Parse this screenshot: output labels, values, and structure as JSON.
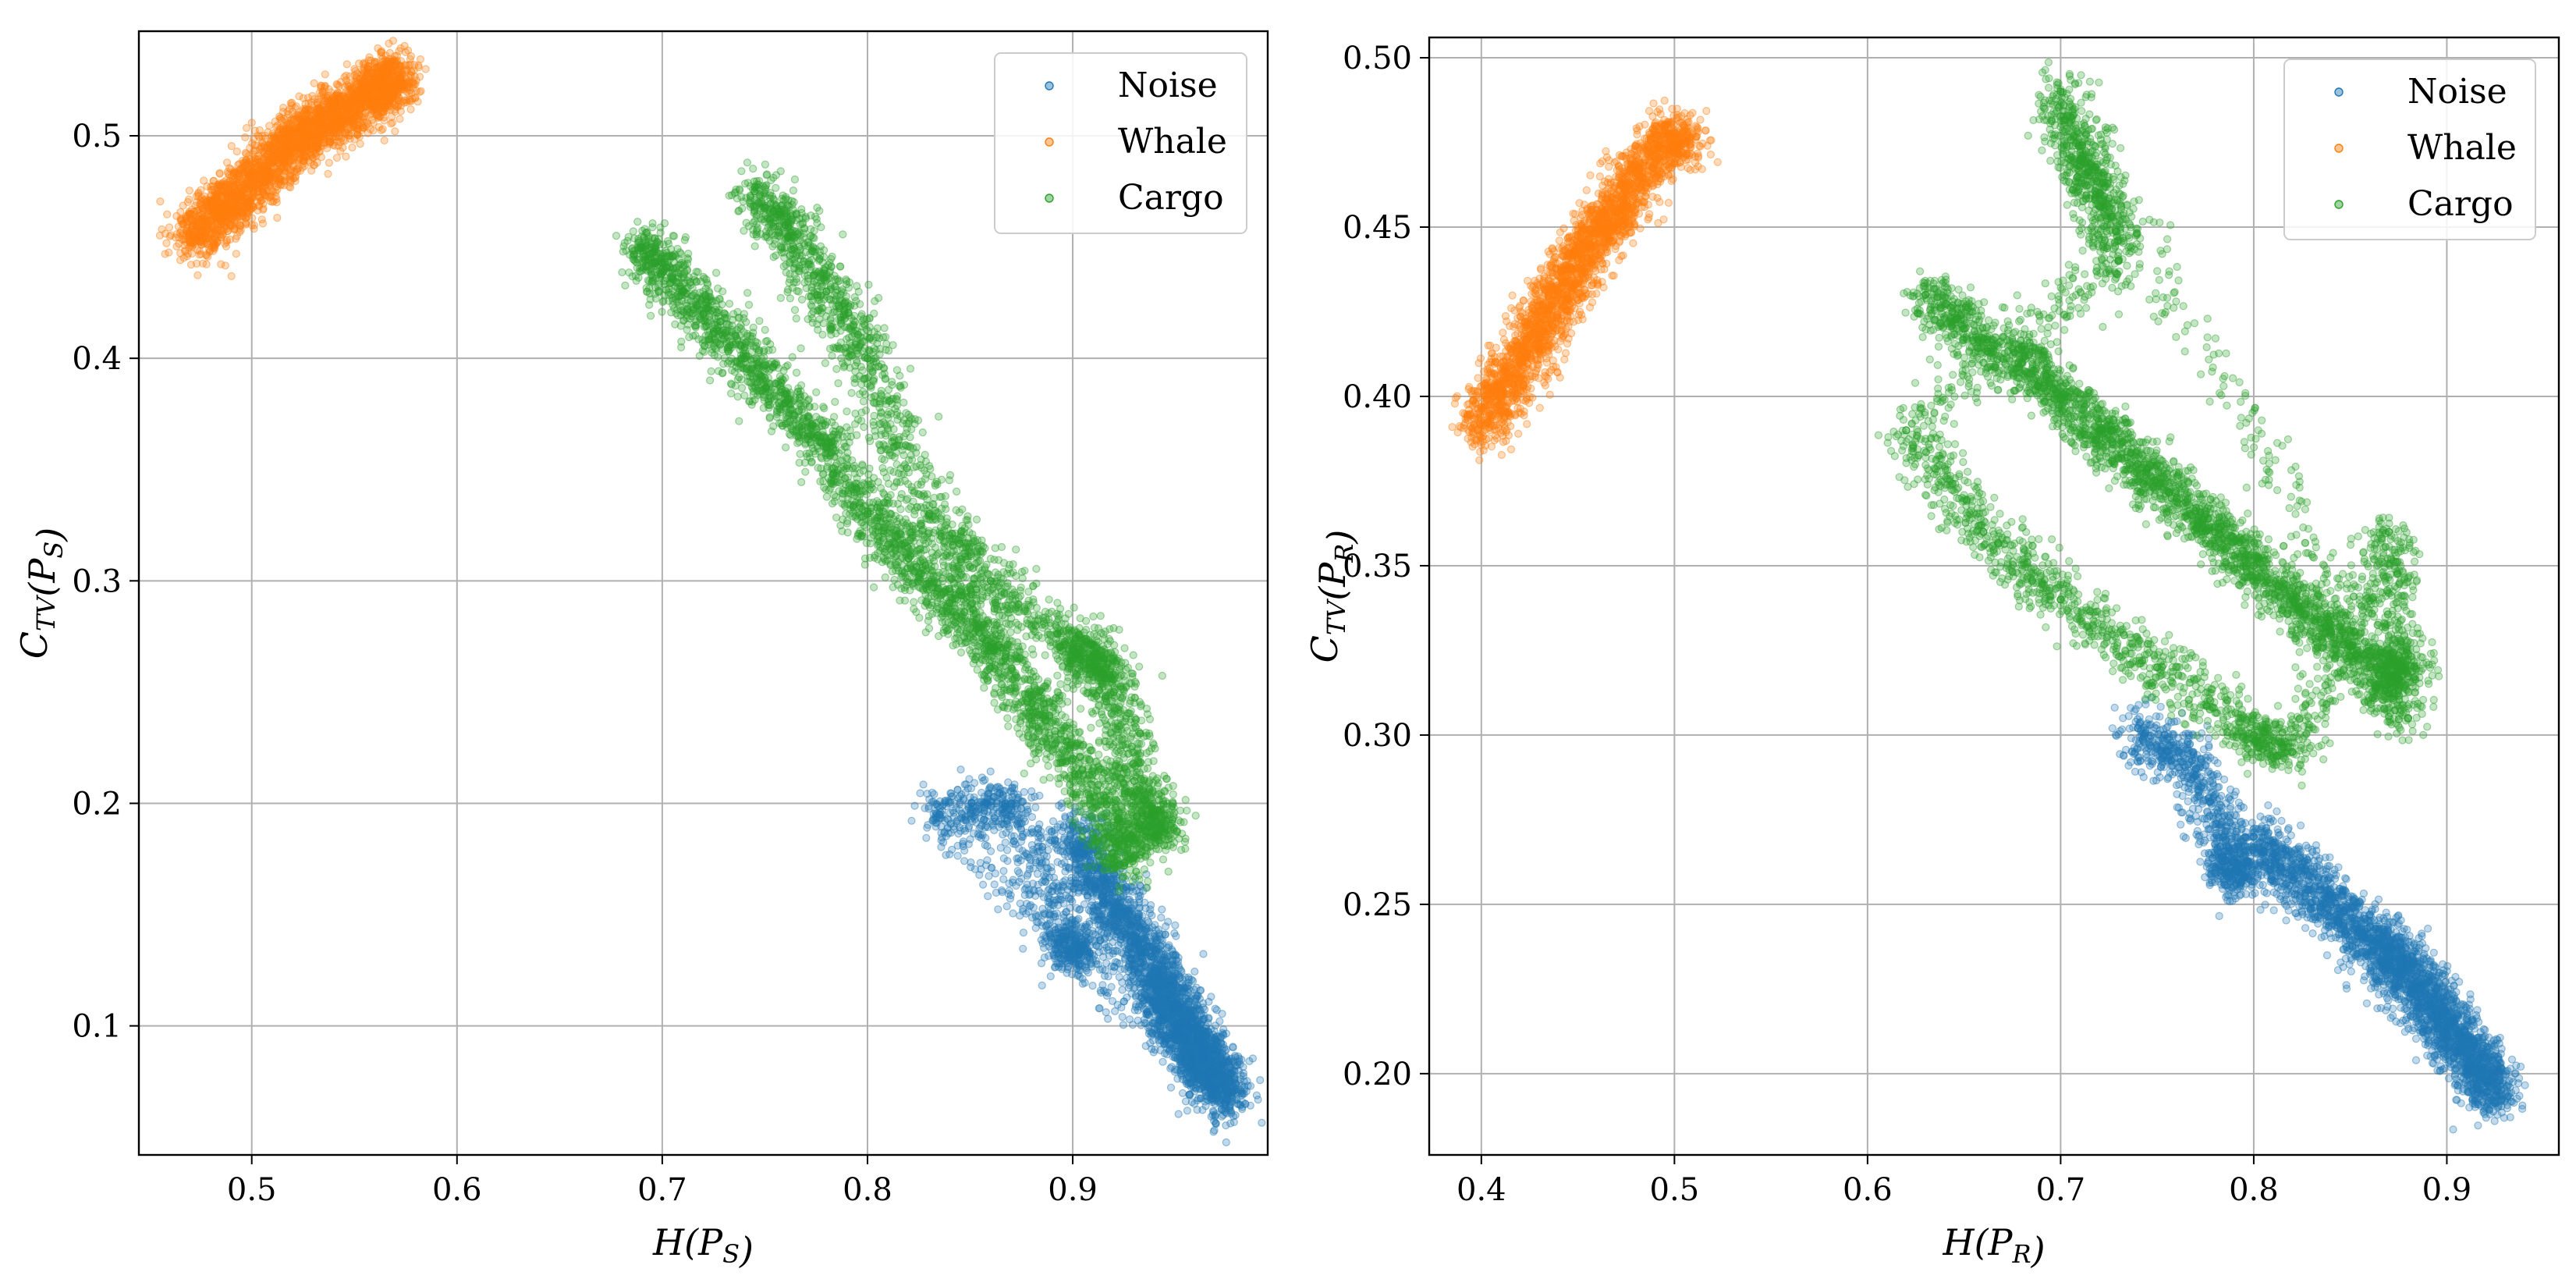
{
  "colors": {
    "noise": "#1f77b4",
    "whale": "#ff7f0e",
    "cargo": "#2ca02c"
  },
  "chart_data": [
    {
      "type": "scatter",
      "id": "left",
      "title": "",
      "xlabel": "H(P_S)",
      "ylabel": "C_TV(P_S)",
      "xlim": [
        0.445,
        0.995
      ],
      "ylim": [
        0.042,
        0.547
      ],
      "xticks": [
        0.5,
        0.6,
        0.7,
        0.8,
        0.9
      ],
      "xtick_labels": [
        "0.5",
        "0.6",
        "0.7",
        "0.8",
        "0.9"
      ],
      "yticks": [
        0.1,
        0.2,
        0.3,
        0.4,
        0.5
      ],
      "ytick_labels": [
        "0.1",
        "0.2",
        "0.3",
        "0.4",
        "0.5"
      ],
      "grid": true,
      "legend": "top-right",
      "series": [
        {
          "name": "Noise",
          "color_key": "noise",
          "points": [
            [
              0.9,
              0.19
            ],
            [
              0.91,
              0.17
            ],
            [
              0.92,
              0.155
            ],
            [
              0.93,
              0.14
            ],
            [
              0.94,
              0.125
            ],
            [
              0.945,
              0.115
            ],
            [
              0.95,
              0.105
            ],
            [
              0.955,
              0.098
            ],
            [
              0.96,
              0.09
            ],
            [
              0.965,
              0.082
            ],
            [
              0.97,
              0.075
            ],
            [
              0.975,
              0.067
            ],
            [
              0.835,
              0.195
            ],
            [
              0.87,
              0.2
            ],
            [
              0.9,
              0.135
            ]
          ]
        },
        {
          "name": "Whale",
          "color_key": "whale",
          "points": [
            [
              0.47,
              0.452
            ],
            [
              0.48,
              0.462
            ],
            [
              0.49,
              0.47
            ],
            [
              0.5,
              0.478
            ],
            [
              0.51,
              0.488
            ],
            [
              0.52,
              0.497
            ],
            [
              0.53,
              0.503
            ],
            [
              0.54,
              0.509
            ],
            [
              0.55,
              0.513
            ],
            [
              0.56,
              0.519
            ],
            [
              0.567,
              0.525
            ]
          ]
        },
        {
          "name": "Cargo",
          "color_key": "cargo",
          "points": [
            [
              0.69,
              0.45
            ],
            [
              0.7,
              0.44
            ],
            [
              0.72,
              0.42
            ],
            [
              0.74,
              0.4
            ],
            [
              0.76,
              0.38
            ],
            [
              0.78,
              0.36
            ],
            [
              0.8,
              0.33
            ],
            [
              0.82,
              0.31
            ],
            [
              0.84,
              0.29
            ],
            [
              0.86,
              0.27
            ],
            [
              0.88,
              0.245
            ],
            [
              0.9,
              0.22
            ],
            [
              0.92,
              0.19
            ],
            [
              0.925,
              0.172
            ],
            [
              0.745,
              0.475
            ],
            [
              0.76,
              0.46
            ],
            [
              0.78,
              0.43
            ],
            [
              0.8,
              0.4
            ],
            [
              0.83,
              0.33
            ],
            [
              0.86,
              0.3
            ],
            [
              0.9,
              0.27
            ],
            [
              0.91,
              0.265
            ],
            [
              0.92,
              0.25
            ],
            [
              0.93,
              0.21
            ],
            [
              0.94,
              0.19
            ]
          ]
        }
      ]
    },
    {
      "type": "scatter",
      "id": "right",
      "title": "",
      "xlabel": "H(P_R)",
      "ylabel": "C_TV(P_R)",
      "xlim": [
        0.373,
        0.958
      ],
      "ylim": [
        0.176,
        0.506
      ],
      "xticks": [
        0.4,
        0.5,
        0.6,
        0.7,
        0.8,
        0.9
      ],
      "xtick_labels": [
        "0.4",
        "0.5",
        "0.6",
        "0.7",
        "0.8",
        "0.9"
      ],
      "yticks": [
        0.2,
        0.25,
        0.3,
        0.35,
        0.4,
        0.45,
        0.5
      ],
      "ytick_labels": [
        "0.20",
        "0.25",
        "0.30",
        "0.35",
        "0.40",
        "0.45",
        "0.50"
      ],
      "grid": true,
      "legend": "top-right",
      "series": [
        {
          "name": "Noise",
          "color_key": "noise",
          "points": [
            [
              0.8,
              0.27
            ],
            [
              0.82,
              0.26
            ],
            [
              0.84,
              0.25
            ],
            [
              0.86,
              0.24
            ],
            [
              0.87,
              0.235
            ],
            [
              0.88,
              0.23
            ],
            [
              0.89,
              0.222
            ],
            [
              0.9,
              0.215
            ],
            [
              0.91,
              0.207
            ],
            [
              0.92,
              0.2
            ],
            [
              0.925,
              0.192
            ],
            [
              0.74,
              0.302
            ],
            [
              0.77,
              0.29
            ],
            [
              0.79,
              0.26
            ]
          ]
        },
        {
          "name": "Whale",
          "color_key": "whale",
          "points": [
            [
              0.398,
              0.39
            ],
            [
              0.41,
              0.4
            ],
            [
              0.42,
              0.41
            ],
            [
              0.43,
              0.42
            ],
            [
              0.44,
              0.43
            ],
            [
              0.45,
              0.44
            ],
            [
              0.46,
              0.448
            ],
            [
              0.47,
              0.455
            ],
            [
              0.48,
              0.465
            ],
            [
              0.5,
              0.476
            ]
          ]
        },
        {
          "name": "Cargo",
          "color_key": "cargo",
          "points": [
            [
              0.63,
              0.43
            ],
            [
              0.65,
              0.42
            ],
            [
              0.68,
              0.41
            ],
            [
              0.7,
              0.4
            ],
            [
              0.72,
              0.39
            ],
            [
              0.74,
              0.38
            ],
            [
              0.76,
              0.37
            ],
            [
              0.78,
              0.36
            ],
            [
              0.8,
              0.35
            ],
            [
              0.82,
              0.34
            ],
            [
              0.84,
              0.33
            ],
            [
              0.86,
              0.32
            ],
            [
              0.88,
              0.305
            ],
            [
              0.7,
              0.49
            ],
            [
              0.71,
              0.47
            ],
            [
              0.72,
              0.46
            ],
            [
              0.73,
              0.44
            ],
            [
              0.62,
              0.39
            ],
            [
              0.66,
              0.36
            ],
            [
              0.7,
              0.34
            ],
            [
              0.75,
              0.32
            ],
            [
              0.8,
              0.3
            ],
            [
              0.82,
              0.295
            ],
            [
              0.87,
              0.36
            ],
            [
              0.875,
              0.32
            ]
          ]
        }
      ]
    }
  ]
}
